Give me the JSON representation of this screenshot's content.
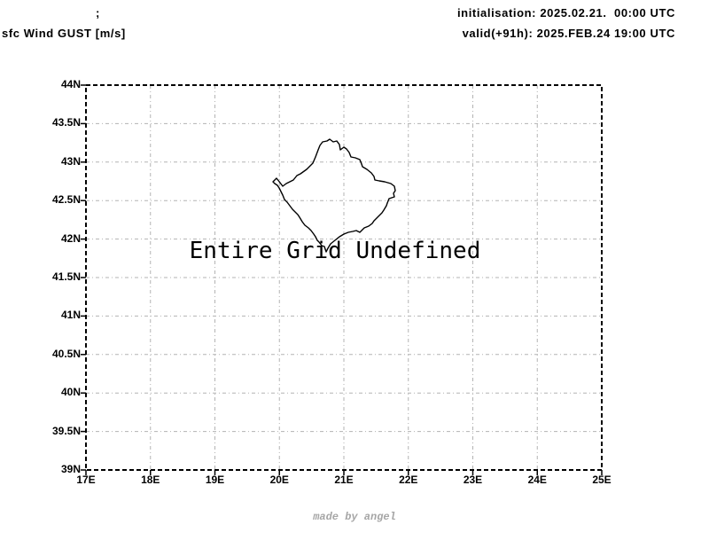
{
  "header": {
    "left_line1": ";",
    "left_line2": "sfc Wind GUST [m/s]",
    "right_line1": "initialisation: 2025.02.21.  00:00 UTC",
    "right_line2": "valid(+91h): 2025.FEB.24 19:00 UTC"
  },
  "footer": {
    "credit": "made by angel"
  },
  "colors": {
    "axis": "#000000",
    "grid": "#b3b3b3",
    "credit_text": "#a6a6a6"
  },
  "chart_data": {
    "type": "map",
    "title": "sfc Wind GUST [m/s]",
    "init_time": "2025.02.21. 00:00 UTC",
    "valid_time": "2025.FEB.24 19:00 UTC",
    "forecast_hour": "+91h",
    "status_message": "Entire Grid Undefined",
    "map_outline": "Kosovo",
    "grid": true,
    "x_axis": {
      "range": [
        17,
        25
      ],
      "tick_values": [
        17,
        18,
        19,
        20,
        21,
        22,
        23,
        24,
        25
      ],
      "tick_labels": [
        "17E",
        "18E",
        "19E",
        "20E",
        "21E",
        "22E",
        "23E",
        "24E",
        "25E"
      ]
    },
    "y_axis": {
      "range": [
        39,
        44
      ],
      "tick_values": [
        44,
        43.5,
        43,
        42.5,
        42,
        41.5,
        41,
        40.5,
        40,
        39.5,
        39
      ],
      "tick_labels": [
        "44N",
        "43.5N",
        "43N",
        "42.5N",
        "42N",
        "41.5N",
        "41N",
        "40.5N",
        "40N",
        "39.5N",
        "39N"
      ]
    },
    "series": []
  }
}
